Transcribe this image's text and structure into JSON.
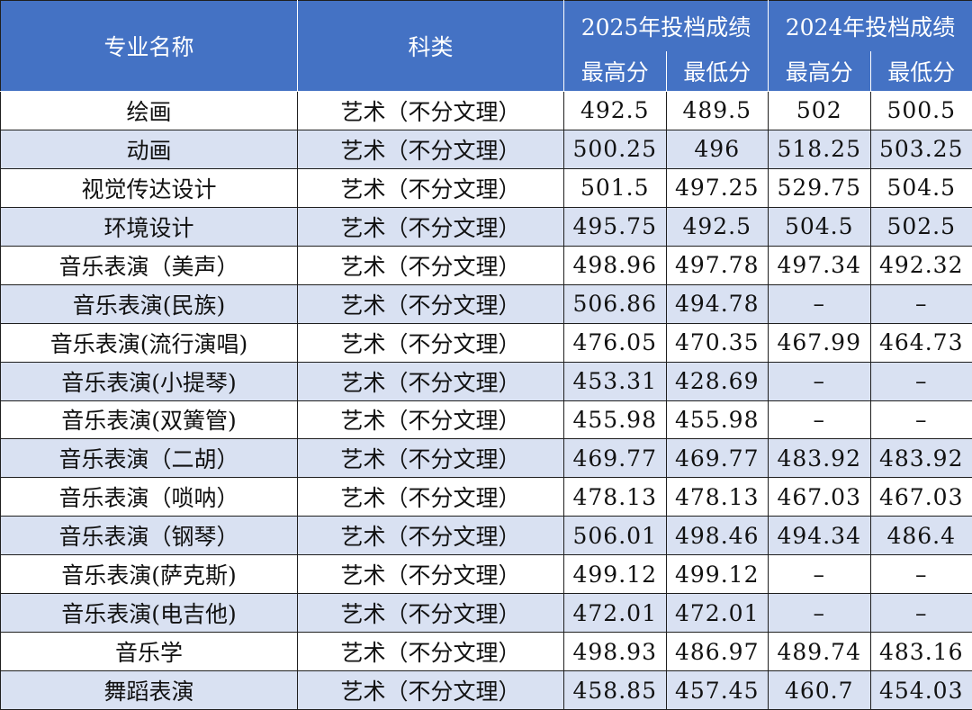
{
  "header": {
    "major": "专业名称",
    "category": "科类",
    "group_2025": "2025年投档成绩",
    "group_2024": "2024年投档成绩",
    "max": "最高分",
    "min": "最低分"
  },
  "rows": [
    {
      "major": "绘画",
      "category": "艺术（不分文理）",
      "y2025_max": "492.5",
      "y2025_min": "489.5",
      "y2024_max": "502",
      "y2024_min": "500.5"
    },
    {
      "major": "动画",
      "category": "艺术（不分文理）",
      "y2025_max": "500.25",
      "y2025_min": "496",
      "y2024_max": "518.25",
      "y2024_min": "503.25"
    },
    {
      "major": "视觉传达设计",
      "category": "艺术（不分文理）",
      "y2025_max": "501.5",
      "y2025_min": "497.25",
      "y2024_max": "529.75",
      "y2024_min": "504.5"
    },
    {
      "major": "环境设计",
      "category": "艺术（不分文理）",
      "y2025_max": "495.75",
      "y2025_min": "492.5",
      "y2024_max": "504.5",
      "y2024_min": "502.5"
    },
    {
      "major": "音乐表演（美声）",
      "category": "艺术（不分文理）",
      "y2025_max": "498.96",
      "y2025_min": "497.78",
      "y2024_max": "497.34",
      "y2024_min": "492.32"
    },
    {
      "major": "音乐表演(民族)",
      "category": "艺术（不分文理）",
      "y2025_max": "506.86",
      "y2025_min": "494.78",
      "y2024_max": "–",
      "y2024_min": "–"
    },
    {
      "major": "音乐表演(流行演唱)",
      "category": "艺术（不分文理）",
      "y2025_max": "476.05",
      "y2025_min": "470.35",
      "y2024_max": "467.99",
      "y2024_min": "464.73"
    },
    {
      "major": "音乐表演(小提琴)",
      "category": "艺术（不分文理）",
      "y2025_max": "453.31",
      "y2025_min": "428.69",
      "y2024_max": "–",
      "y2024_min": "–"
    },
    {
      "major": "音乐表演(双簧管)",
      "category": "艺术（不分文理）",
      "y2025_max": "455.98",
      "y2025_min": "455.98",
      "y2024_max": "–",
      "y2024_min": "–"
    },
    {
      "major": "音乐表演（二胡）",
      "category": "艺术（不分文理）",
      "y2025_max": "469.77",
      "y2025_min": "469.77",
      "y2024_max": "483.92",
      "y2024_min": "483.92"
    },
    {
      "major": "音乐表演（唢呐）",
      "category": "艺术（不分文理）",
      "y2025_max": "478.13",
      "y2025_min": "478.13",
      "y2024_max": "467.03",
      "y2024_min": "467.03"
    },
    {
      "major": "音乐表演（钢琴）",
      "category": "艺术（不分文理）",
      "y2025_max": "506.01",
      "y2025_min": "498.46",
      "y2024_max": "494.34",
      "y2024_min": "486.4"
    },
    {
      "major": "音乐表演(萨克斯)",
      "category": "艺术（不分文理）",
      "y2025_max": "499.12",
      "y2025_min": "499.12",
      "y2024_max": "–",
      "y2024_min": "–"
    },
    {
      "major": "音乐表演(电吉他)",
      "category": "艺术（不分文理）",
      "y2025_max": "472.01",
      "y2025_min": "472.01",
      "y2024_max": "–",
      "y2024_min": "–"
    },
    {
      "major": "音乐学",
      "category": "艺术（不分文理）",
      "y2025_max": "498.93",
      "y2025_min": "486.97",
      "y2024_max": "489.74",
      "y2024_min": "483.16"
    },
    {
      "major": "舞蹈表演",
      "category": "艺术（不分文理）",
      "y2025_max": "458.85",
      "y2025_min": "457.45",
      "y2024_max": "460.7",
      "y2024_min": "454.03"
    }
  ]
}
